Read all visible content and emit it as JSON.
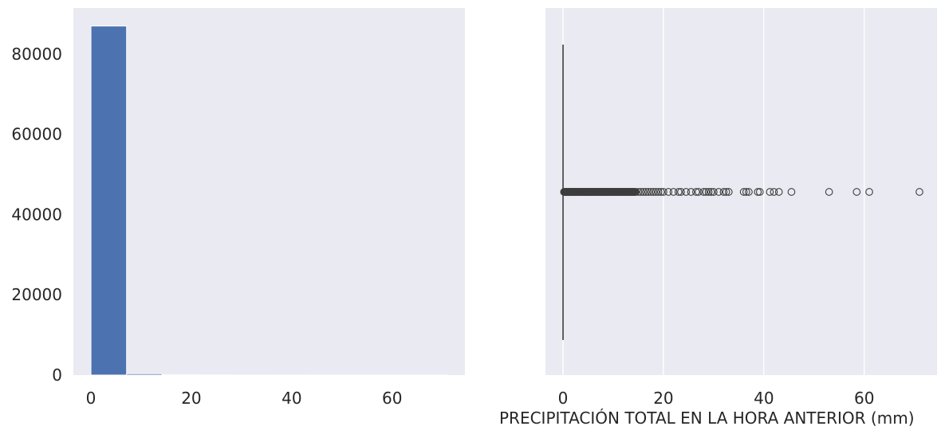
{
  "chart_data": [
    {
      "type": "histogram",
      "xlim": [
        -3.5,
        74.5
      ],
      "ylim": [
        0,
        91500
      ],
      "grid": false,
      "x_ticks": [
        0,
        20,
        40,
        60
      ],
      "x_tick_labels": [
        "0",
        "20",
        "40",
        "60"
      ],
      "y_ticks": [
        0,
        20000,
        40000,
        60000,
        80000
      ],
      "y_tick_labels": [
        "0",
        "20000",
        "40000",
        "60000",
        "80000"
      ],
      "bars": [
        {
          "x0": 0.0,
          "x1": 7.1,
          "count": 87000
        },
        {
          "x0": 7.1,
          "x1": 14.2,
          "count": 350
        },
        {
          "x0": 14.2,
          "x1": 21.3,
          "count": 60
        },
        {
          "x0": 21.3,
          "x1": 28.4,
          "count": 25
        },
        {
          "x0": 28.4,
          "x1": 35.5,
          "count": 10
        },
        {
          "x0": 35.5,
          "x1": 42.6,
          "count": 6
        },
        {
          "x0": 42.6,
          "x1": 49.7,
          "count": 2
        },
        {
          "x0": 49.7,
          "x1": 56.8,
          "count": 1
        },
        {
          "x0": 56.8,
          "x1": 63.9,
          "count": 2
        },
        {
          "x0": 63.9,
          "x1": 71.0,
          "count": 1
        }
      ],
      "color": "#4c72b0"
    },
    {
      "type": "boxplot",
      "orientation": "horizontal",
      "xlim": [
        -3.5,
        74.5
      ],
      "grid": "vertical",
      "x_ticks": [
        0,
        20,
        40,
        60
      ],
      "x_tick_labels": [
        "0",
        "20",
        "40",
        "60"
      ],
      "xlabel": "PRECIPITACIÓN TOTAL EN LA HORA ANTERIOR (mm)",
      "box": {
        "q1": 0,
        "median": 0,
        "q3": 0,
        "whisker_low": 0,
        "whisker_high": 0
      },
      "outliers_dense_range": [
        0.2,
        14.5
      ],
      "outliers": [
        15,
        15.5,
        16,
        16.5,
        17,
        17.5,
        18,
        18.5,
        19,
        19.5,
        20,
        21,
        22,
        23,
        23.5,
        24.5,
        25.5,
        26.5,
        27,
        28,
        28.5,
        29,
        29.5,
        30,
        31,
        32,
        32.5,
        33,
        36,
        36.5,
        37,
        38.8,
        39.2,
        41.2,
        42,
        43,
        45.5,
        53,
        58.5,
        61,
        71
      ],
      "color": "#4c72b0"
    }
  ]
}
